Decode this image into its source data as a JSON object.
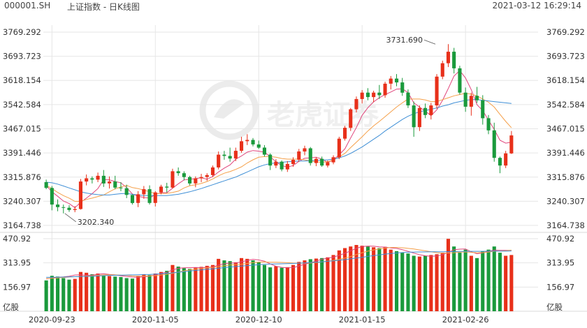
{
  "header": {
    "code": "000001.SH",
    "title": "上证指数 - 日K线图",
    "datetime": "2021-03-12 16:29:14"
  },
  "watermark": "老虎证券",
  "colors": {
    "up": "#e8301a",
    "down": "#1a9a3c",
    "ma5": "#e0457b",
    "ma10": "#f5a04a",
    "ma20": "#3f8fd6",
    "grid": "#e6e6e6",
    "axis_text": "#333333"
  },
  "chart_data": [
    {
      "type": "candlestick",
      "title": "上证指数 - 日K线图",
      "ylim": [
        3164.738,
        3769.292
      ],
      "y_ticks": [
        "3769.292",
        "3693.723",
        "3618.154",
        "3542.584",
        "3467.015",
        "3391.446",
        "3315.876",
        "3240.307",
        "3164.738"
      ],
      "x_ticks": [
        {
          "index": 1,
          "label": "2020-09-23"
        },
        {
          "index": 19,
          "label": "2020-11-05"
        },
        {
          "index": 37,
          "label": "2020-12-10"
        },
        {
          "index": 55,
          "label": "2021-01-15"
        },
        {
          "index": 73,
          "label": "2021-02-26"
        }
      ],
      "annotations": [
        {
          "label": "3731.690",
          "index": 68,
          "value": 3731.69,
          "side": "left"
        },
        {
          "label": "3202.340",
          "index": 3,
          "value": 3202.34,
          "side": "right"
        }
      ],
      "ohlc": [
        [
          3300,
          3308,
          3278,
          3282
        ],
        [
          3282,
          3288,
          3212,
          3230
        ],
        [
          3230,
          3246,
          3209,
          3222
        ],
        [
          3222,
          3230,
          3202.34,
          3220
        ],
        [
          3220,
          3228,
          3207,
          3213
        ],
        [
          3213,
          3225,
          3206,
          3216
        ],
        [
          3216,
          3310,
          3214,
          3302
        ],
        [
          3302,
          3324,
          3290,
          3312
        ],
        [
          3312,
          3318,
          3296,
          3308
        ],
        [
          3308,
          3330,
          3300,
          3320
        ],
        [
          3320,
          3338,
          3285,
          3296
        ],
        [
          3296,
          3318,
          3280,
          3302
        ],
        [
          3302,
          3320,
          3278,
          3283
        ],
        [
          3283,
          3300,
          3272,
          3281
        ],
        [
          3281,
          3292,
          3250,
          3260
        ],
        [
          3260,
          3262,
          3230,
          3235
        ],
        [
          3235,
          3272,
          3222,
          3262
        ],
        [
          3262,
          3288,
          3248,
          3278
        ],
        [
          3278,
          3290,
          3230,
          3235
        ],
        [
          3235,
          3272,
          3224,
          3268
        ],
        [
          3268,
          3292,
          3262,
          3286
        ],
        [
          3286,
          3298,
          3268,
          3283
        ],
        [
          3283,
          3342,
          3280,
          3334
        ],
        [
          3334,
          3346,
          3320,
          3328
        ],
        [
          3328,
          3334,
          3306,
          3316
        ],
        [
          3316,
          3320,
          3290,
          3296
        ],
        [
          3296,
          3318,
          3284,
          3312
        ],
        [
          3312,
          3326,
          3300,
          3316
        ],
        [
          3316,
          3328,
          3304,
          3322
        ],
        [
          3322,
          3352,
          3316,
          3346
        ],
        [
          3346,
          3396,
          3340,
          3386
        ],
        [
          3386,
          3398,
          3370,
          3382
        ],
        [
          3382,
          3408,
          3364,
          3374
        ],
        [
          3374,
          3408,
          3366,
          3398
        ],
        [
          3398,
          3442,
          3392,
          3428
        ],
        [
          3428,
          3450,
          3416,
          3432
        ],
        [
          3432,
          3438,
          3412,
          3418
        ],
        [
          3418,
          3430,
          3404,
          3408
        ],
        [
          3408,
          3416,
          3380,
          3386
        ],
        [
          3386,
          3390,
          3338,
          3352
        ],
        [
          3352,
          3372,
          3344,
          3364
        ],
        [
          3364,
          3368,
          3334,
          3340
        ],
        [
          3340,
          3366,
          3332,
          3357
        ],
        [
          3357,
          3378,
          3348,
          3370
        ],
        [
          3370,
          3404,
          3364,
          3396
        ],
        [
          3396,
          3414,
          3384,
          3406
        ],
        [
          3406,
          3410,
          3352,
          3360
        ],
        [
          3360,
          3378,
          3350,
          3373
        ],
        [
          3373,
          3380,
          3348,
          3352
        ],
        [
          3352,
          3368,
          3346,
          3362
        ],
        [
          3362,
          3384,
          3356,
          3378
        ],
        [
          3378,
          3442,
          3372,
          3436
        ],
        [
          3436,
          3476,
          3430,
          3470
        ],
        [
          3470,
          3532,
          3460,
          3528
        ],
        [
          3528,
          3568,
          3518,
          3560
        ],
        [
          3560,
          3588,
          3546,
          3580
        ],
        [
          3580,
          3594,
          3556,
          3566
        ],
        [
          3566,
          3586,
          3550,
          3580
        ],
        [
          3580,
          3604,
          3560,
          3572
        ],
        [
          3572,
          3614,
          3564,
          3608
        ],
        [
          3608,
          3632,
          3590,
          3624
        ],
        [
          3624,
          3638,
          3600,
          3612
        ],
        [
          3612,
          3626,
          3570,
          3580
        ],
        [
          3580,
          3590,
          3532,
          3540
        ],
        [
          3540,
          3552,
          3442,
          3472
        ],
        [
          3472,
          3540,
          3460,
          3532
        ],
        [
          3532,
          3546,
          3500,
          3510
        ],
        [
          3510,
          3548,
          3496,
          3540
        ],
        [
          3540,
          3638,
          3530,
          3630
        ],
        [
          3630,
          3680,
          3622,
          3672
        ],
        [
          3672,
          3731.69,
          3660,
          3708
        ],
        [
          3708,
          3720,
          3640,
          3656
        ],
        [
          3656,
          3664,
          3574,
          3580
        ],
        [
          3580,
          3596,
          3520,
          3536
        ],
        [
          3536,
          3580,
          3508,
          3570
        ],
        [
          3570,
          3598,
          3548,
          3556
        ],
        [
          3556,
          3572,
          3480,
          3500
        ],
        [
          3500,
          3510,
          3450,
          3462
        ],
        [
          3462,
          3486,
          3364,
          3376
        ],
        [
          3376,
          3380,
          3328,
          3352
        ],
        [
          3352,
          3398,
          3344,
          3390
        ],
        [
          3390,
          3460,
          3388,
          3446
        ]
      ],
      "ma": [
        {
          "name": "MA5",
          "values": [
            3290,
            3270,
            3256,
            3241,
            3233,
            3220,
            3237,
            3250,
            3264,
            3280,
            3308,
            3307,
            3302,
            3298,
            3283,
            3263,
            3256,
            3252,
            3250,
            3262,
            3267,
            3267,
            3281,
            3295,
            3307,
            3309,
            3311,
            3314,
            3309,
            3318,
            3332,
            3344,
            3354,
            3372,
            3382,
            3394,
            3399,
            3397,
            3394,
            3379,
            3364,
            3352,
            3347,
            3352,
            3365,
            3375,
            3376,
            3378,
            3372,
            3362,
            3369,
            3386,
            3404,
            3438,
            3471,
            3509,
            3533,
            3551,
            3564,
            3574,
            3582,
            3591,
            3592,
            3580,
            3548,
            3535,
            3522,
            3508,
            3526,
            3556,
            3593,
            3632,
            3649,
            3626,
            3589,
            3542,
            3524,
            3494,
            3465,
            3431,
            3422,
            3425
          ]
        },
        {
          "name": "MA10",
          "values": [
            3290,
            3280,
            3268,
            3258,
            3250,
            3240,
            3240,
            3246,
            3250,
            3255,
            3260,
            3270,
            3279,
            3285,
            3290,
            3283,
            3280,
            3275,
            3270,
            3264,
            3265,
            3265,
            3268,
            3272,
            3282,
            3289,
            3292,
            3296,
            3302,
            3310,
            3320,
            3328,
            3333,
            3340,
            3348,
            3360,
            3370,
            3378,
            3380,
            3380,
            3378,
            3374,
            3372,
            3372,
            3372,
            3370,
            3366,
            3364,
            3362,
            3364,
            3369,
            3379,
            3390,
            3408,
            3425,
            3442,
            3460,
            3476,
            3490,
            3505,
            3520,
            3535,
            3548,
            3560,
            3560,
            3560,
            3557,
            3552,
            3552,
            3558,
            3564,
            3570,
            3574,
            3578,
            3575,
            3570,
            3560,
            3550,
            3535,
            3512,
            3490,
            3470
          ]
        },
        {
          "name": "MA20",
          "values": [
            3300,
            3298,
            3294,
            3288,
            3282,
            3276,
            3270,
            3266,
            3263,
            3261,
            3260,
            3260,
            3262,
            3264,
            3265,
            3262,
            3260,
            3258,
            3258,
            3258,
            3258,
            3258,
            3260,
            3262,
            3266,
            3270,
            3275,
            3280,
            3286,
            3292,
            3298,
            3304,
            3310,
            3316,
            3324,
            3332,
            3340,
            3348,
            3354,
            3358,
            3360,
            3362,
            3364,
            3365,
            3366,
            3366,
            3367,
            3368,
            3369,
            3370,
            3372,
            3376,
            3382,
            3390,
            3400,
            3410,
            3422,
            3434,
            3446,
            3460,
            3472,
            3484,
            3496,
            3506,
            3514,
            3520,
            3524,
            3528,
            3532,
            3538,
            3542,
            3548,
            3552,
            3556,
            3558,
            3558,
            3556,
            3554,
            3552,
            3550,
            3548,
            3546
          ]
        }
      ]
    },
    {
      "type": "bar",
      "title": "",
      "ylabel": "亿股",
      "ylim": [
        0,
        470.92
      ],
      "y_ticks": [
        "470.92",
        "313.95",
        "156.97"
      ],
      "values": [
        200,
        230,
        225,
        215,
        205,
        210,
        255,
        250,
        240,
        245,
        230,
        228,
        225,
        222,
        215,
        212,
        230,
        240,
        235,
        245,
        255,
        262,
        300,
        290,
        280,
        275,
        282,
        288,
        295,
        300,
        340,
        330,
        325,
        318,
        345,
        340,
        330,
        320,
        300,
        285,
        292,
        282,
        286,
        300,
        320,
        330,
        338,
        342,
        345,
        350,
        365,
        395,
        410,
        420,
        430,
        425,
        420,
        415,
        410,
        418,
        400,
        390,
        380,
        375,
        360,
        355,
        360,
        365,
        370,
        380,
        470,
        420,
        380,
        400,
        360,
        345,
        390,
        400,
        420,
        380,
        360,
        365
      ],
      "ma": [
        {
          "name": "MA5",
          "values": [
            210,
            215,
            220,
            223,
            227,
            235,
            237,
            233,
            234,
            240,
            243,
            239,
            236,
            230,
            226,
            222,
            220,
            224,
            228,
            235,
            246,
            252,
            268,
            279,
            282,
            283,
            284,
            283,
            285,
            287,
            300,
            308,
            313,
            313,
            321,
            329,
            337,
            333,
            325,
            307,
            292,
            285,
            282,
            283,
            294,
            305,
            314,
            326,
            337,
            345,
            351,
            363,
            376,
            392,
            408,
            420,
            423,
            422,
            418,
            416,
            411,
            408,
            400,
            389,
            377,
            367,
            360,
            357,
            359,
            366,
            383,
            399,
            403,
            404,
            386,
            373,
            379,
            390,
            396,
            395,
            395,
            395
          ]
        },
        {
          "name": "MA10",
          "values": [
            212,
            214,
            216,
            219,
            222,
            224,
            226,
            228,
            230,
            233,
            236,
            237,
            236,
            234,
            233,
            229,
            227,
            228,
            229,
            231,
            235,
            240,
            246,
            254,
            262,
            268,
            274,
            278,
            282,
            285,
            290,
            295,
            300,
            303,
            305,
            310,
            316,
            319,
            320,
            318,
            318,
            317,
            315,
            313,
            312,
            312,
            313,
            316,
            320,
            325,
            330,
            337,
            345,
            355,
            368,
            380,
            390,
            398,
            404,
            410,
            414,
            414,
            412,
            408,
            404,
            398,
            392,
            386,
            380,
            376,
            378,
            380,
            383,
            385,
            382,
            380,
            381,
            384,
            388,
            390,
            392,
            396
          ]
        },
        {
          "name": "MA20",
          "values": [
            220,
            220,
            221,
            222,
            223,
            224,
            225,
            226,
            227,
            229,
            231,
            232,
            233,
            234,
            235,
            236,
            237,
            238,
            239,
            241,
            243,
            246,
            249,
            253,
            257,
            261,
            265,
            268,
            272,
            275,
            279,
            283,
            287,
            290,
            293,
            296,
            299,
            302,
            304,
            306,
            307,
            308,
            309,
            310,
            312,
            314,
            316,
            318,
            321,
            324,
            327,
            331,
            335,
            340,
            345,
            350,
            356,
            361,
            366,
            371,
            375,
            378,
            381,
            383,
            384,
            385,
            385,
            386,
            386,
            386,
            387,
            387,
            388,
            388,
            389,
            389,
            389,
            390,
            390,
            390,
            390,
            391
          ]
        }
      ]
    }
  ]
}
